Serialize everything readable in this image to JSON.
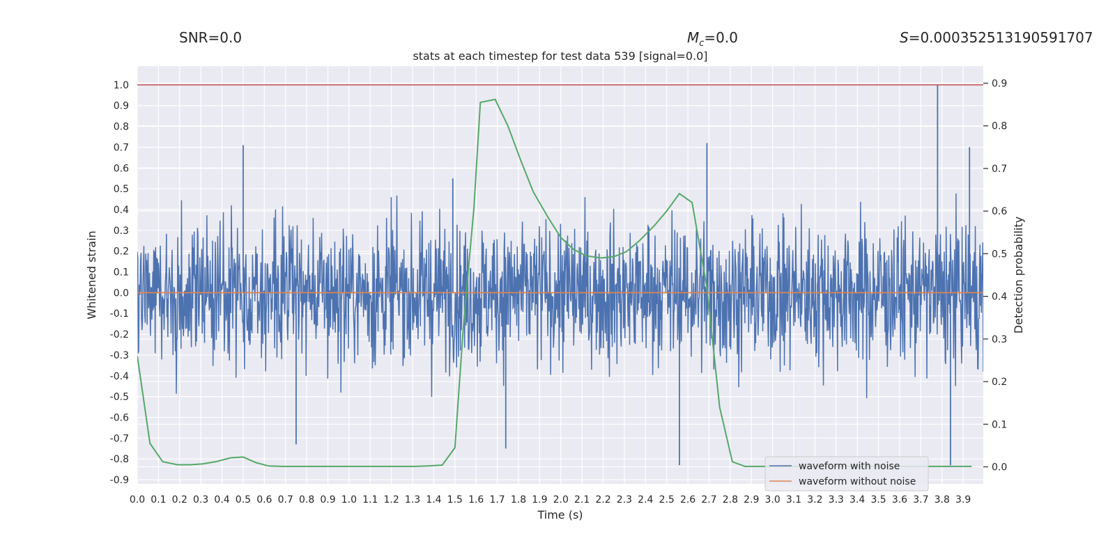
{
  "header": {
    "snr_label": "SNR=0.0",
    "mc_symbol": "M",
    "mc_subscript": "c",
    "mc_value": "=0.0",
    "s_symbol": "S",
    "s_value": "=0.000352513190591707"
  },
  "chart_data": {
    "type": "line",
    "title": "stats at each timestep for test data 539 [signal=0.0]",
    "xlabel": "Time (s)",
    "ylabel": "Whitened strain",
    "y2label": "Detection probability",
    "xlim": [
      0.0,
      3.995
    ],
    "ylim": [
      -0.92,
      1.09
    ],
    "y2lim": [
      -0.04,
      0.94
    ],
    "x_ticks": [
      "0.0",
      "0.1",
      "0.2",
      "0.3",
      "0.4",
      "0.5",
      "0.6",
      "0.7",
      "0.8",
      "0.9",
      "1.0",
      "1.1",
      "1.2",
      "1.3",
      "1.4",
      "1.5",
      "1.6",
      "1.7",
      "1.8",
      "1.9",
      "2.0",
      "2.1",
      "2.2",
      "2.3",
      "2.4",
      "2.5",
      "2.6",
      "2.7",
      "2.8",
      "2.9",
      "3.0",
      "3.1",
      "3.2",
      "3.3",
      "3.4",
      "3.5",
      "3.6",
      "3.7",
      "3.8",
      "3.9"
    ],
    "y_ticks": [
      "1.0",
      "0.9",
      "0.8",
      "0.7",
      "0.6",
      "0.5",
      "0.4",
      "0.3",
      "0.2",
      "0.1",
      "0.0",
      "-0.1",
      "-0.2",
      "-0.3",
      "-0.4",
      "-0.5",
      "-0.6",
      "-0.7",
      "-0.8",
      "-0.9"
    ],
    "y2_ticks": [
      "0.9",
      "0.8",
      "0.7",
      "0.6",
      "0.5",
      "0.4",
      "0.3",
      "0.2",
      "0.1",
      "0.0"
    ],
    "grid": true,
    "legend_position": "bottom-right",
    "colors": {
      "noise": "#4c72b0",
      "clean": "#dd8452",
      "probability": "#55a868",
      "threshold": "#c44e52",
      "background": "#eaeaf2",
      "grid": "#ffffff"
    },
    "series": [
      {
        "name": "waveform with noise",
        "axis": "left",
        "description": "dense whitened noise, mostly between -0.5 and 0.5",
        "peaks_high": [
          [
            0.5,
            0.71
          ],
          [
            1.49,
            0.55
          ],
          [
            2.69,
            0.72
          ],
          [
            3.779,
            1.0
          ],
          [
            3.93,
            0.7
          ]
        ],
        "peaks_low": [
          [
            0.75,
            -0.73
          ],
          [
            1.74,
            -0.75
          ],
          [
            2.56,
            -0.83
          ],
          [
            3.84,
            -0.83
          ]
        ]
      },
      {
        "name": "waveform without noise",
        "axis": "left",
        "x": [
          0.0,
          3.995
        ],
        "y": [
          0.0,
          0.0
        ]
      },
      {
        "name": "detection probability",
        "axis": "right",
        "x": [
          0.0,
          0.06,
          0.12,
          0.19,
          0.25,
          0.31,
          0.37,
          0.44,
          0.5,
          0.56,
          0.62,
          0.69,
          0.75,
          0.81,
          0.87,
          0.94,
          1.0,
          1.06,
          1.12,
          1.19,
          1.25,
          1.31,
          1.37,
          1.44,
          1.5,
          1.54,
          1.59,
          1.62,
          1.69,
          1.75,
          1.81,
          1.87,
          1.94,
          2.0,
          2.06,
          2.12,
          2.19,
          2.25,
          2.31,
          2.37,
          2.44,
          2.5,
          2.56,
          2.62,
          2.69,
          2.75,
          2.81,
          2.87,
          2.94,
          3.0,
          3.06,
          3.12,
          3.19,
          3.25,
          3.31,
          3.37,
          3.44,
          3.5,
          3.56,
          3.62,
          3.69,
          3.75,
          3.81,
          3.87,
          3.94
        ],
        "y": [
          0.26,
          0.055,
          0.012,
          0.005,
          0.005,
          0.007,
          0.012,
          0.021,
          0.023,
          0.01,
          0.002,
          0.001,
          0.001,
          0.001,
          0.001,
          0.001,
          0.001,
          0.001,
          0.001,
          0.001,
          0.001,
          0.001,
          0.002,
          0.004,
          0.045,
          0.33,
          0.61,
          0.855,
          0.862,
          0.8,
          0.72,
          0.645,
          0.585,
          0.538,
          0.51,
          0.495,
          0.49,
          0.493,
          0.505,
          0.53,
          0.565,
          0.6,
          0.641,
          0.62,
          0.42,
          0.14,
          0.012,
          0.001,
          0.001,
          0.001,
          0.001,
          0.001,
          0.001,
          0.001,
          0.001,
          0.001,
          0.001,
          0.001,
          0.001,
          0.001,
          0.001,
          0.001,
          0.001,
          0.001,
          0.001
        ]
      },
      {
        "name": "threshold",
        "axis": "left",
        "x": [
          0.0,
          3.995
        ],
        "y": [
          1.0,
          1.0
        ]
      }
    ]
  }
}
